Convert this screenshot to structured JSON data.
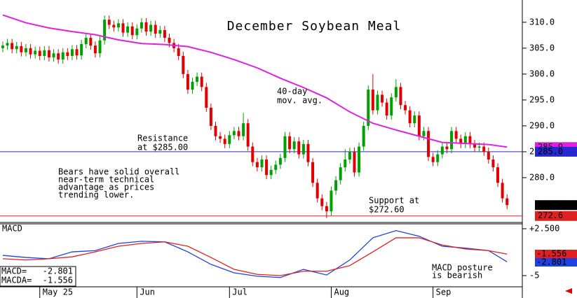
{
  "chart_data": [
    {
      "type": "candlestick",
      "title": "December Soybean Meal",
      "xlim": [
        -0.6,
        112.3
      ],
      "ylim": [
        271.35,
        314.3
      ],
      "yticks": [
        {
          "value": 280,
          "label": "280.0"
        },
        {
          "value": 285,
          "label": "285.0"
        },
        {
          "value": 290,
          "label": "290.0"
        },
        {
          "value": 295,
          "label": "295.0"
        },
        {
          "value": 300,
          "label": "300.0"
        },
        {
          "value": 305,
          "label": "305.0"
        },
        {
          "value": 310,
          "label": "310.0"
        }
      ],
      "up_color": "#00a000",
      "down_color": "#e00000",
      "open": [
        305,
        305.5,
        306,
        304.8,
        305.4,
        304.2,
        305,
        303.8,
        304.5,
        303.5,
        304.6,
        303.2,
        304,
        302.8,
        304.2,
        303.5,
        304.8,
        303.6,
        305.8,
        307,
        305.5,
        304,
        306.5,
        310.5,
        309.5,
        309,
        309.8,
        308,
        309.2,
        307.5,
        308.8,
        310,
        308.2,
        309.5,
        307.8,
        308.5,
        307,
        306,
        305,
        303.5,
        300,
        297,
        298.5,
        299.5,
        297.5,
        293.5,
        290,
        288,
        287.5,
        286.5,
        288.2,
        289,
        288,
        290.5,
        286,
        283,
        282,
        283.5,
        280.5,
        281.5,
        282.5,
        283.8,
        288,
        285.5,
        287,
        284.5,
        286.5,
        283,
        279,
        276,
        274.5,
        273.5,
        277.5,
        279.5,
        282,
        283.5,
        285,
        281,
        286,
        290,
        297,
        293,
        296,
        294.5,
        292,
        295.5,
        297.5,
        294,
        293,
        290.5,
        292,
        288,
        289,
        284,
        283,
        284.5,
        286,
        285.5,
        289,
        287.5,
        286.5,
        288,
        286.5,
        285.8,
        286,
        285,
        283.5,
        282,
        279,
        276
      ],
      "high": [
        306.3,
        306.8,
        306.8,
        306.2,
        306.2,
        305.8,
        305.8,
        305.3,
        305.3,
        305.4,
        305.4,
        304.8,
        304.8,
        305,
        305,
        305.6,
        305.6,
        306.6,
        307.8,
        307.8,
        306.3,
        307.3,
        311.3,
        311.3,
        310.3,
        310.6,
        310.6,
        310,
        310,
        309.6,
        310.8,
        310.8,
        310.3,
        310.3,
        309.3,
        309.3,
        307.8,
        306.8,
        305.8,
        304.3,
        300.8,
        299.3,
        300.3,
        300.3,
        298.3,
        294.3,
        290.8,
        288.8,
        288.3,
        289,
        289.8,
        289.8,
        292.5,
        291.3,
        286.8,
        283.8,
        284.3,
        284.3,
        282.3,
        283.3,
        284.6,
        288.8,
        288.8,
        287.8,
        287.8,
        287.3,
        287.3,
        283.8,
        279.8,
        276.8,
        275.3,
        278.3,
        280.3,
        282.8,
        285.5,
        285.8,
        285.8,
        286.8,
        290.8,
        297.8,
        300,
        296.8,
        296.8,
        295.3,
        296.3,
        299,
        298.3,
        294.8,
        293.8,
        292.8,
        292.8,
        289.8,
        289.8,
        284.8,
        285.3,
        286.8,
        286.8,
        289.8,
        289.8,
        288.3,
        288.8,
        288.8,
        287.3,
        286.8,
        286.8,
        285.8,
        284.3,
        282.8,
        279.8,
        276.8
      ],
      "low": [
        304.2,
        304.7,
        304,
        304,
        303.4,
        303.4,
        303,
        303,
        302.7,
        302.7,
        302.4,
        302.4,
        302,
        302,
        302.7,
        302.7,
        302.8,
        302.8,
        305,
        304.7,
        303.2,
        303.2,
        305.7,
        308.7,
        308.2,
        308.2,
        307.2,
        307.2,
        306.7,
        306.7,
        308,
        307.4,
        307.4,
        307,
        307,
        306.2,
        305.2,
        304.2,
        302.7,
        299.2,
        296.2,
        296.2,
        297.7,
        296.7,
        292.7,
        289.2,
        287.2,
        286.7,
        285.7,
        285.7,
        287.4,
        287.2,
        287.2,
        285.2,
        282.2,
        281.2,
        281.2,
        279.7,
        279.7,
        280.7,
        281.7,
        283,
        284.7,
        284.7,
        283.7,
        283.7,
        282.2,
        278.2,
        275.2,
        273.7,
        272.2,
        272.7,
        276.7,
        278.7,
        281.2,
        282.7,
        280.2,
        280.2,
        285.2,
        289.2,
        292.2,
        292.2,
        293.7,
        291.2,
        291.2,
        294.7,
        293.2,
        292.2,
        289.7,
        289.7,
        287.2,
        287.2,
        283.2,
        282.2,
        282.2,
        283.7,
        284.7,
        284.7,
        286.7,
        285.7,
        285.7,
        285.7,
        285,
        285,
        284.2,
        282.7,
        281.2,
        278.2,
        275.2,
        273.9
      ],
      "close": [
        305.5,
        306,
        304.8,
        305.4,
        304.2,
        305,
        303.8,
        304.5,
        303.5,
        304.6,
        303.2,
        304,
        302.8,
        304.2,
        303.5,
        304.8,
        303.6,
        305.8,
        307,
        305.5,
        304,
        306.5,
        310.5,
        309.5,
        309,
        309.8,
        308,
        309.2,
        307.5,
        308.8,
        310,
        308.2,
        309.5,
        307.8,
        308.5,
        307,
        306,
        305,
        303.5,
        300,
        297,
        298.5,
        299.5,
        297.5,
        293.5,
        290,
        288,
        287.5,
        286.5,
        288.2,
        289,
        288,
        290.5,
        286,
        283,
        282,
        283.5,
        280.5,
        281.5,
        282.5,
        283.8,
        288,
        285.5,
        287,
        284.5,
        286.5,
        283,
        279,
        276,
        274.5,
        273.5,
        277.5,
        279.5,
        282,
        283.5,
        285,
        281,
        286,
        290,
        297,
        293,
        296,
        294.5,
        292,
        295.5,
        297.5,
        294,
        293,
        290.5,
        292,
        288,
        289,
        284,
        283,
        284.5,
        286,
        285.5,
        289,
        287.5,
        286.5,
        288,
        286.5,
        285.8,
        286,
        285,
        283.5,
        282,
        279,
        276,
        274.7
      ],
      "overlay": {
        "name": [
          "40-day",
          "mov. avg."
        ],
        "color": "#e020e0",
        "x": [
          0,
          5,
          10,
          15,
          20,
          25,
          30,
          35,
          40,
          45,
          50,
          55,
          60,
          65,
          70,
          75,
          80,
          85,
          90,
          95,
          100,
          105,
          109
        ],
        "values": [
          311.4,
          309.9,
          308.9,
          308.2,
          307.6,
          306.6,
          305.9,
          305.7,
          305.3,
          304.2,
          302.8,
          301.2,
          299.2,
          297.4,
          295.4,
          292.7,
          290.5,
          289.2,
          288,
          286.8,
          286.6,
          286.4,
          285.9
        ]
      },
      "hlines": [
        {
          "name": [
            "Resistance",
            "at $285.00"
          ],
          "value": 285,
          "value_label": "285.0",
          "color": "#2828d0"
        },
        {
          "name": [
            "Support at",
            "$272.60"
          ],
          "value": 272.6,
          "color": "#e02020"
        }
      ],
      "annotation": [
        "Bears have solid overall",
        "near-term technical",
        "advantage as prices",
        "trending lower."
      ]
    },
    {
      "type": "line",
      "title": "MACD",
      "xlim": [
        -0.6,
        112.3
      ],
      "ylim": [
        -6.79,
        3.28
      ],
      "yticks": [
        {
          "value": 2.5,
          "label": "+2.500"
        },
        -5
      ],
      "xticks": [
        {
          "value": 8,
          "label": "May 25"
        },
        {
          "value": 29,
          "label": "Jun"
        },
        {
          "value": 49,
          "label": "Jul"
        },
        {
          "value": 71,
          "label": "Aug"
        },
        {
          "value": 93,
          "label": "Sep"
        }
      ],
      "x": [
        0,
        5,
        10,
        15,
        20,
        25,
        30,
        35,
        40,
        45,
        50,
        55,
        60,
        65,
        70,
        75,
        80,
        85,
        90,
        95,
        100,
        105,
        109
      ],
      "series": [
        {
          "name": "MACD=",
          "color": "#2040e0",
          "values": [
            -1.76,
            -2.1,
            -2.3,
            -1.2,
            -1.0,
            0.15,
            0.5,
            0.4,
            -1.2,
            -3.2,
            -4.55,
            -5.1,
            -5.3,
            -4.0,
            -4.9,
            -2.5,
            1.05,
            2.2,
            1.3,
            -0.3,
            -0.6,
            -1.0,
            -2.801
          ]
        },
        {
          "name": "MACDA=",
          "color": "#e02020",
          "values": [
            -2.3,
            -2.5,
            -2.3,
            -2.0,
            -1.2,
            -0.3,
            0.15,
            0.4,
            -0.3,
            -2.1,
            -4.0,
            -4.8,
            -5.0,
            -4.3,
            -4.3,
            -3.4,
            -1.2,
            1.05,
            1.05,
            -0.1,
            -0.75,
            -1.0,
            -1.556
          ]
        }
      ],
      "annotation": [
        "MACD posture",
        "is bearish"
      ]
    }
  ]
}
